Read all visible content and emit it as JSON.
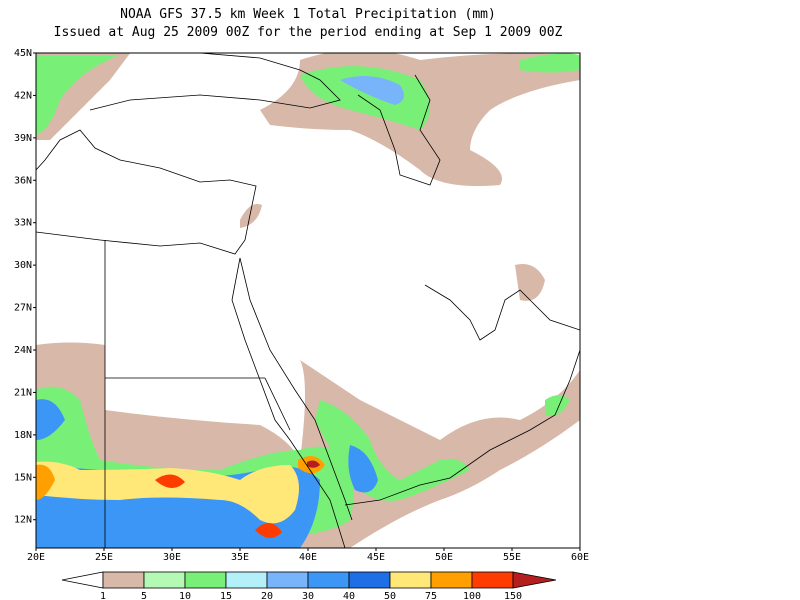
{
  "header": {
    "title": "NOAA GFS 37.5 km Week 1 Total Precipitation (mm)",
    "subtitle": "Issued at Aug 25 2009 00Z for the period ending at Sep 1 2009 00Z"
  },
  "map": {
    "lat_labels": [
      "45N",
      "42N",
      "39N",
      "36N",
      "33N",
      "30N",
      "27N",
      "24N",
      "21N",
      "18N",
      "15N",
      "12N"
    ],
    "lon_labels": [
      "20E",
      "25E",
      "30E",
      "35E",
      "40E",
      "45E",
      "50E",
      "55E",
      "60E"
    ]
  },
  "legend": {
    "levels": [
      1,
      5,
      10,
      15,
      20,
      30,
      40,
      50,
      75,
      100,
      150
    ],
    "colors": [
      "#ffffff",
      "#d8b8a8",
      "#b4fab4",
      "#78f078",
      "#b4f0fa",
      "#78b4fa",
      "#3c96f5",
      "#1e6ee6",
      "#ffe878",
      "#ffa000",
      "#ff3c00",
      "#b41e1e"
    ]
  }
}
